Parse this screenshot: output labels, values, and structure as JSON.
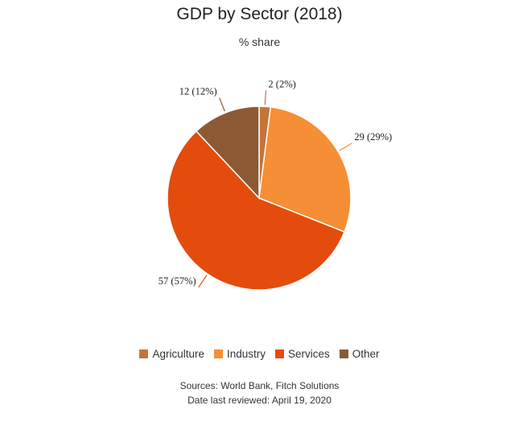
{
  "chart_data": {
    "type": "pie",
    "title": "GDP by Sector (2018)",
    "subtitle": "% share",
    "slices": [
      {
        "label": "Agriculture",
        "value": 2,
        "percent": 2,
        "display": "2 (2%)",
        "color": "#c8723b"
      },
      {
        "label": "Industry",
        "value": 29,
        "percent": 29,
        "display": "29 (29%)",
        "color": "#f68e35"
      },
      {
        "label": "Services",
        "value": 57,
        "percent": 57,
        "display": "57 (57%)",
        "color": "#e34c0c"
      },
      {
        "label": "Other",
        "value": 12,
        "percent": 12,
        "display": "12 (12%)",
        "color": "#8b5a35"
      }
    ],
    "legend_position": "bottom"
  },
  "footer": {
    "sources": "Sources: World Bank, Fitch Solutions",
    "reviewed": "Date last reviewed: April 19, 2020"
  }
}
